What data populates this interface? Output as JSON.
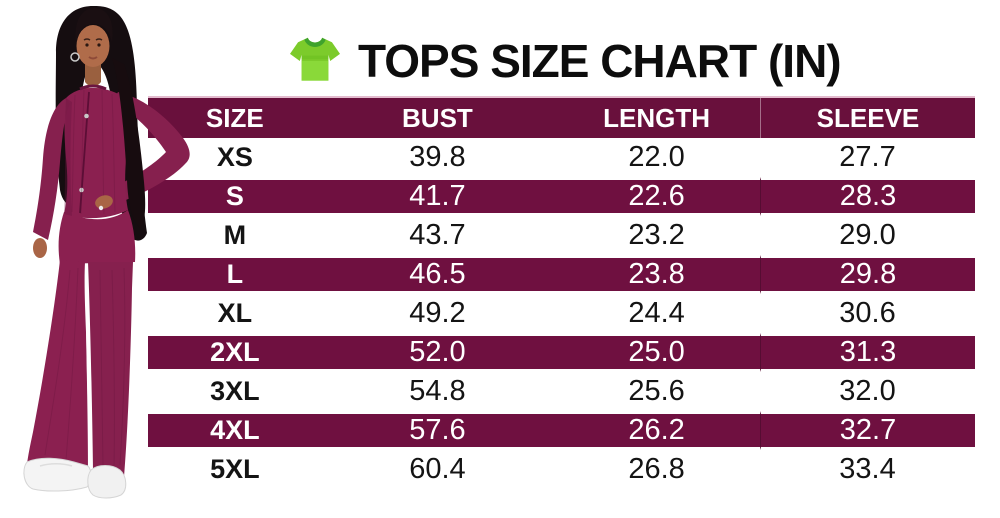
{
  "title": {
    "text": "TOPS SIZE CHART (IN)",
    "icon": "tshirt-icon"
  },
  "colors": {
    "header-bg": "#69103C",
    "stripe-bg": "#6F1040",
    "hairline": "#E3BBCE",
    "title-text": "#0D0D0D"
  },
  "icon_colors": {
    "tshirt_body": "#7CCB2B",
    "tshirt_collar_shadow": "#3FA32C",
    "tshirt_light": "#8DDC3C"
  },
  "figure": {
    "description": "Model wearing a maroon ribbed zip-front cardigan with matching flared pants and white sneakers"
  },
  "chart_data": {
    "type": "table",
    "title": "TOPS SIZE CHART (IN)",
    "unit": "IN",
    "columns": [
      "SIZE",
      "BUST",
      "LENGTH",
      "SLEEVE"
    ],
    "rows": [
      [
        "XS",
        "39.8",
        "22.0",
        "27.7"
      ],
      [
        "S",
        "41.7",
        "22.6",
        "28.3"
      ],
      [
        "M",
        "43.7",
        "23.2",
        "29.0"
      ],
      [
        "L",
        "46.5",
        "23.8",
        "29.8"
      ],
      [
        "XL",
        "49.2",
        "24.4",
        "30.6"
      ],
      [
        "2XL",
        "52.0",
        "25.0",
        "31.3"
      ],
      [
        "3XL",
        "54.8",
        "25.6",
        "32.0"
      ],
      [
        "4XL",
        "57.6",
        "26.2",
        "32.7"
      ],
      [
        "5XL",
        "60.4",
        "26.8",
        "33.4"
      ]
    ],
    "layout": {
      "striped_rows": [
        "S",
        "L",
        "2XL",
        "4XL"
      ],
      "stripe_style": "dark maroon bands with white gaps, white text",
      "header_style": "dark maroon, white bold text",
      "text_align": "center",
      "grid": false
    }
  }
}
